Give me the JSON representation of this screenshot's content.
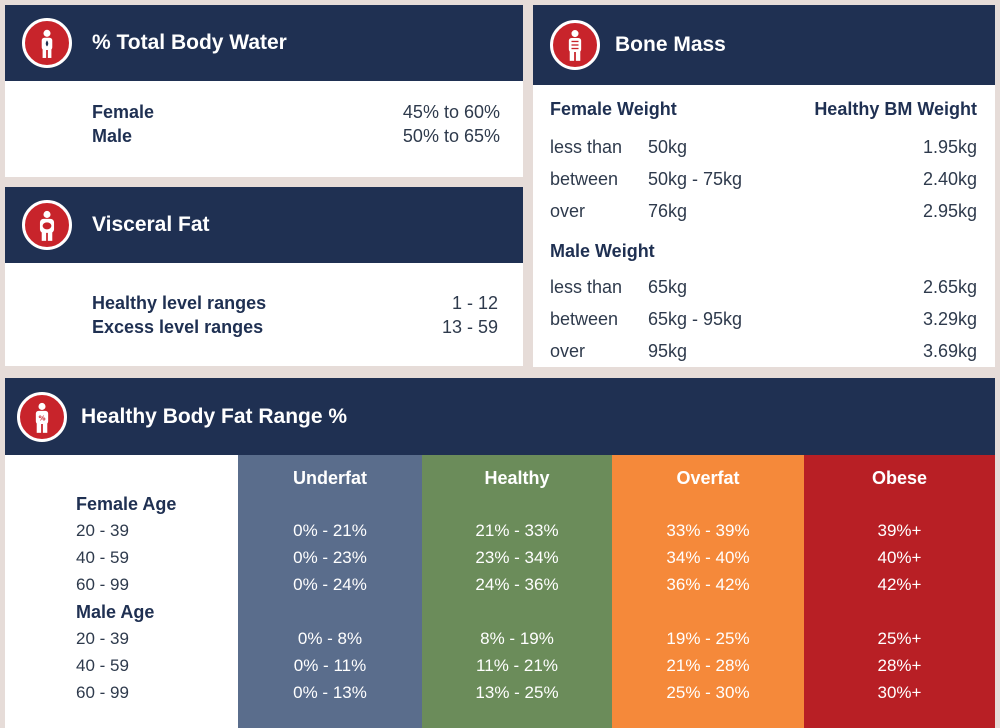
{
  "water": {
    "title": "% Total Body Water",
    "rows": [
      {
        "label": "Female",
        "value": "45% to 60%"
      },
      {
        "label": "Male",
        "value": "50% to 65%"
      }
    ]
  },
  "visceral": {
    "title": "Visceral Fat",
    "rows": [
      {
        "label": "Healthy level ranges",
        "value": "1 - 12"
      },
      {
        "label": "Excess level ranges",
        "value": "13 - 59"
      }
    ]
  },
  "bone": {
    "title": "Bone Mass",
    "female_header": "Female Weight",
    "value_header": "Healthy BM Weight",
    "female_rows": [
      {
        "qual": "less than",
        "weight": "50kg",
        "bm": "1.95kg"
      },
      {
        "qual": "between",
        "weight": "50kg - 75kg",
        "bm": "2.40kg"
      },
      {
        "qual": "over",
        "weight": "76kg",
        "bm": "2.95kg"
      }
    ],
    "male_header": "Male Weight",
    "male_rows": [
      {
        "qual": "less than",
        "weight": "65kg",
        "bm": "2.65kg"
      },
      {
        "qual": "between",
        "weight": "65kg - 95kg",
        "bm": "3.29kg"
      },
      {
        "qual": "over",
        "weight": "95kg",
        "bm": "3.69kg"
      }
    ]
  },
  "bodyfat": {
    "title": "Healthy Body Fat Range %",
    "female_label": "Female Age",
    "male_label": "Male Age",
    "female_ages": [
      "20 - 39",
      "40 - 59",
      "60 - 99"
    ],
    "male_ages": [
      "20 - 39",
      "40 - 59",
      "60 - 99"
    ],
    "columns": [
      {
        "name": "Underfat",
        "color": "#5a6d8c",
        "female": [
          "0% - 21%",
          "0% - 23%",
          "0% - 24%"
        ],
        "male": [
          "0% - 8%",
          "0% - 11%",
          "0% - 13%"
        ]
      },
      {
        "name": "Healthy",
        "color": "#6b8c5a",
        "female": [
          "21% - 33%",
          "23% - 34%",
          "24% - 36%"
        ],
        "male": [
          "8% - 19%",
          "11% - 21%",
          "13% - 25%"
        ]
      },
      {
        "name": "Overfat",
        "color": "#f5893a",
        "female": [
          "33% - 39%",
          "34% - 40%",
          "36% - 42%"
        ],
        "male": [
          "19% - 25%",
          "21% - 28%",
          "25% - 30%"
        ]
      },
      {
        "name": "Obese",
        "color": "#b81f25",
        "female": [
          "39%+",
          "40%+",
          "42%+"
        ],
        "male": [
          "25%+",
          "28%+",
          "30%+"
        ]
      }
    ]
  },
  "colors": {
    "navy": "#1f3052",
    "icon_red": "#c8242b",
    "background": "#e6dcd8"
  },
  "icons": [
    "body-water-icon",
    "visceral-fat-icon",
    "bone-icon",
    "body-fat-icon"
  ]
}
